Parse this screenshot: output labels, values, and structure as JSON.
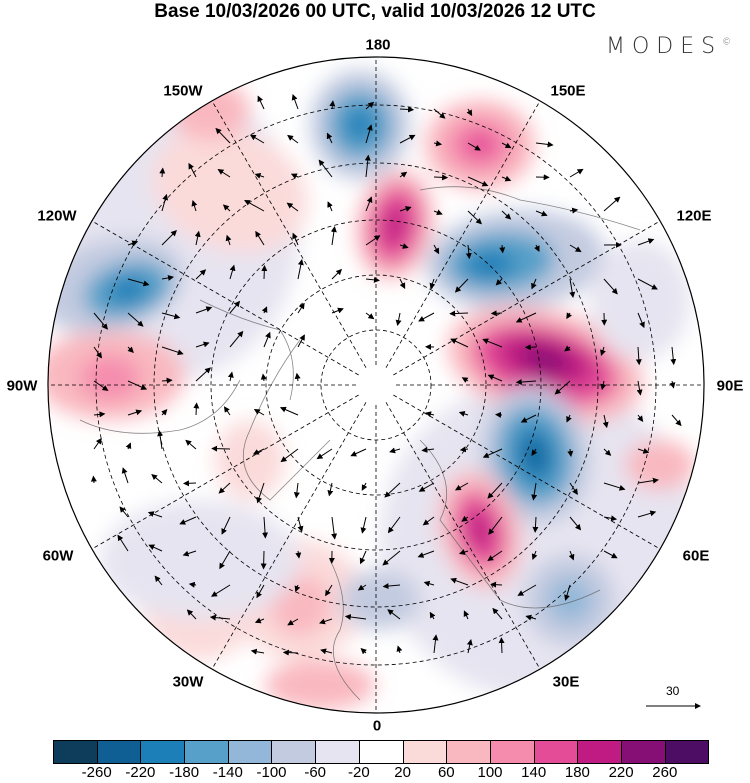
{
  "title": "Base 10/03/2026 00 UTC, valid 10/03/2026 12 UTC",
  "logo": "MODES",
  "logo_mark": "©",
  "longitude_labels": {
    "top": "180",
    "lon150e": "150E",
    "lon120e": "120E",
    "lon90e": "90E",
    "lon60e": "60E",
    "lon30e": "30E",
    "bottom": "0",
    "lon30w": "30W",
    "lon60w": "60W",
    "lon90w": "90W",
    "lon120w": "120W",
    "lon150w": "150W"
  },
  "reference_vector": "30",
  "colorbar": {
    "colors": [
      "#0d3d5a",
      "#0f5f94",
      "#1d7fb8",
      "#57a0c9",
      "#93b7d8",
      "#c3cbe0",
      "#e6e4f0",
      "#ffffff",
      "#fbdada",
      "#f9b8bf",
      "#f58cae",
      "#e54c98",
      "#c01b83",
      "#850f74",
      "#4d0d64"
    ],
    "ticks": [
      "-260",
      "-220",
      "-180",
      "-140",
      "-100",
      "-60",
      "-20",
      "20",
      "60",
      "100",
      "140",
      "180",
      "220",
      "260"
    ]
  }
}
